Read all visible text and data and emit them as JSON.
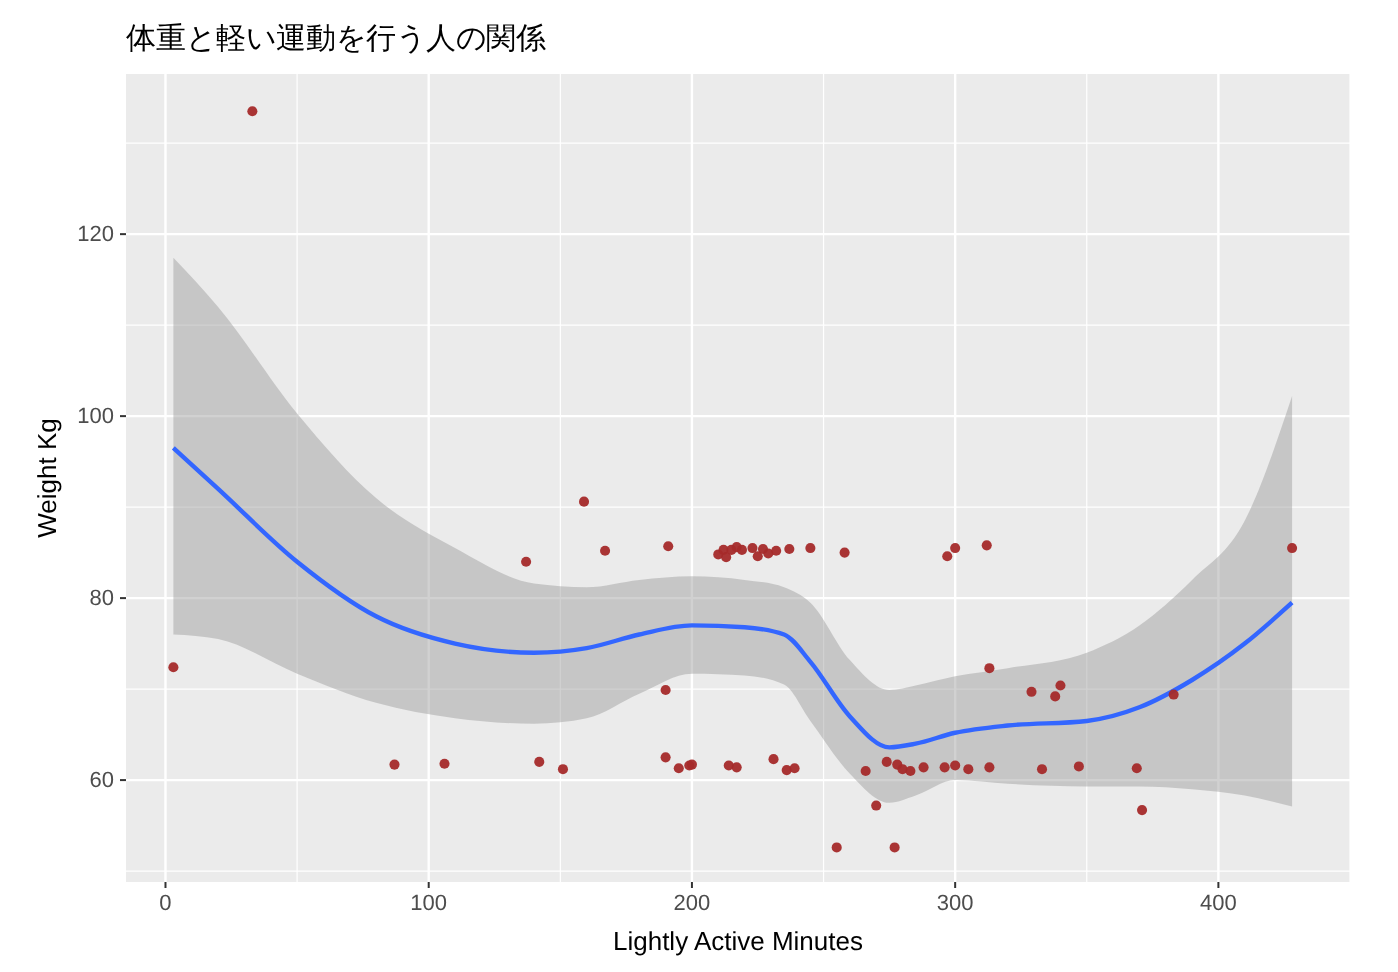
{
  "chart_data": {
    "type": "scatter",
    "title": "体重と軽い運動を行う人の関係",
    "xlabel": "Lightly Active Minutes",
    "ylabel": "Weight Kg",
    "xlim": [
      -15,
      450
    ],
    "ylim": [
      48.8,
      137.6
    ],
    "xticks": [
      0,
      100,
      200,
      300,
      400
    ],
    "yticks": [
      60,
      80,
      100,
      120
    ],
    "grid": true,
    "series": [
      {
        "type": "scatter",
        "marker": "circle",
        "color": "#a52a2a",
        "x": [
          3,
          33,
          87,
          106,
          137,
          142,
          151,
          159,
          167,
          191,
          190,
          190,
          195,
          199,
          200,
          210,
          212,
          213,
          215,
          217,
          219,
          223,
          225,
          227,
          229,
          232,
          237,
          245,
          258,
          214,
          217,
          231,
          236,
          239,
          255,
          270,
          277,
          266,
          274,
          278,
          280,
          283,
          288,
          296,
          300,
          305,
          313,
          333,
          347,
          369,
          371,
          383,
          428,
          297,
          300,
          312,
          313,
          329,
          338,
          340
        ],
        "values": [
          72.4,
          133.5,
          61.7,
          61.8,
          84,
          62,
          61.2,
          90.6,
          85.2,
          85.7,
          62.5,
          69.9,
          61.3,
          61.6,
          61.7,
          84.8,
          85.3,
          84.5,
          85.3,
          85.6,
          85.3,
          85.5,
          84.6,
          85.4,
          84.9,
          85.2,
          85.4,
          85.5,
          85,
          61.6,
          61.4,
          62.3,
          61.1,
          61.3,
          52.6,
          57.2,
          52.6,
          61,
          62,
          61.7,
          61.2,
          61,
          61.4,
          61.4,
          61.6,
          61.2,
          61.4,
          61.2,
          61.5,
          61.3,
          56.7,
          69.4,
          85.5,
          84.6,
          85.5,
          85.8,
          72.3,
          69.7,
          69.2,
          70.4
        ]
      },
      {
        "type": "line",
        "color": "#3366ff",
        "x": [
          3,
          20,
          50,
          80,
          110,
          140,
          160,
          180,
          200,
          220,
          235,
          245,
          260,
          275,
          285,
          300,
          320,
          350,
          370,
          390,
          410,
          428
        ],
        "values": [
          96.5,
          92,
          84,
          78,
          75,
          74,
          74.5,
          76,
          77,
          76.8,
          76,
          73,
          67,
          63.6,
          64,
          65.2,
          66,
          66.5,
          68,
          71,
          75,
          79.5
        ],
        "lower": [
          76,
          75.5,
          71.7,
          68.5,
          66.8,
          66.2,
          66.8,
          69.5,
          71.7,
          71.5,
          70.5,
          66.5,
          60.7,
          57.5,
          58.3,
          60,
          59.6,
          59.3,
          59.3,
          59,
          58.3,
          57.1
        ],
        "upper": [
          117.4,
          112,
          100.3,
          91,
          85.5,
          81.6,
          81.2,
          82,
          82.4,
          82,
          81.2,
          79.5,
          73.2,
          69.9,
          70.4,
          71.4,
          72.3,
          74,
          77,
          82,
          88.5,
          102.2
        ]
      }
    ]
  }
}
